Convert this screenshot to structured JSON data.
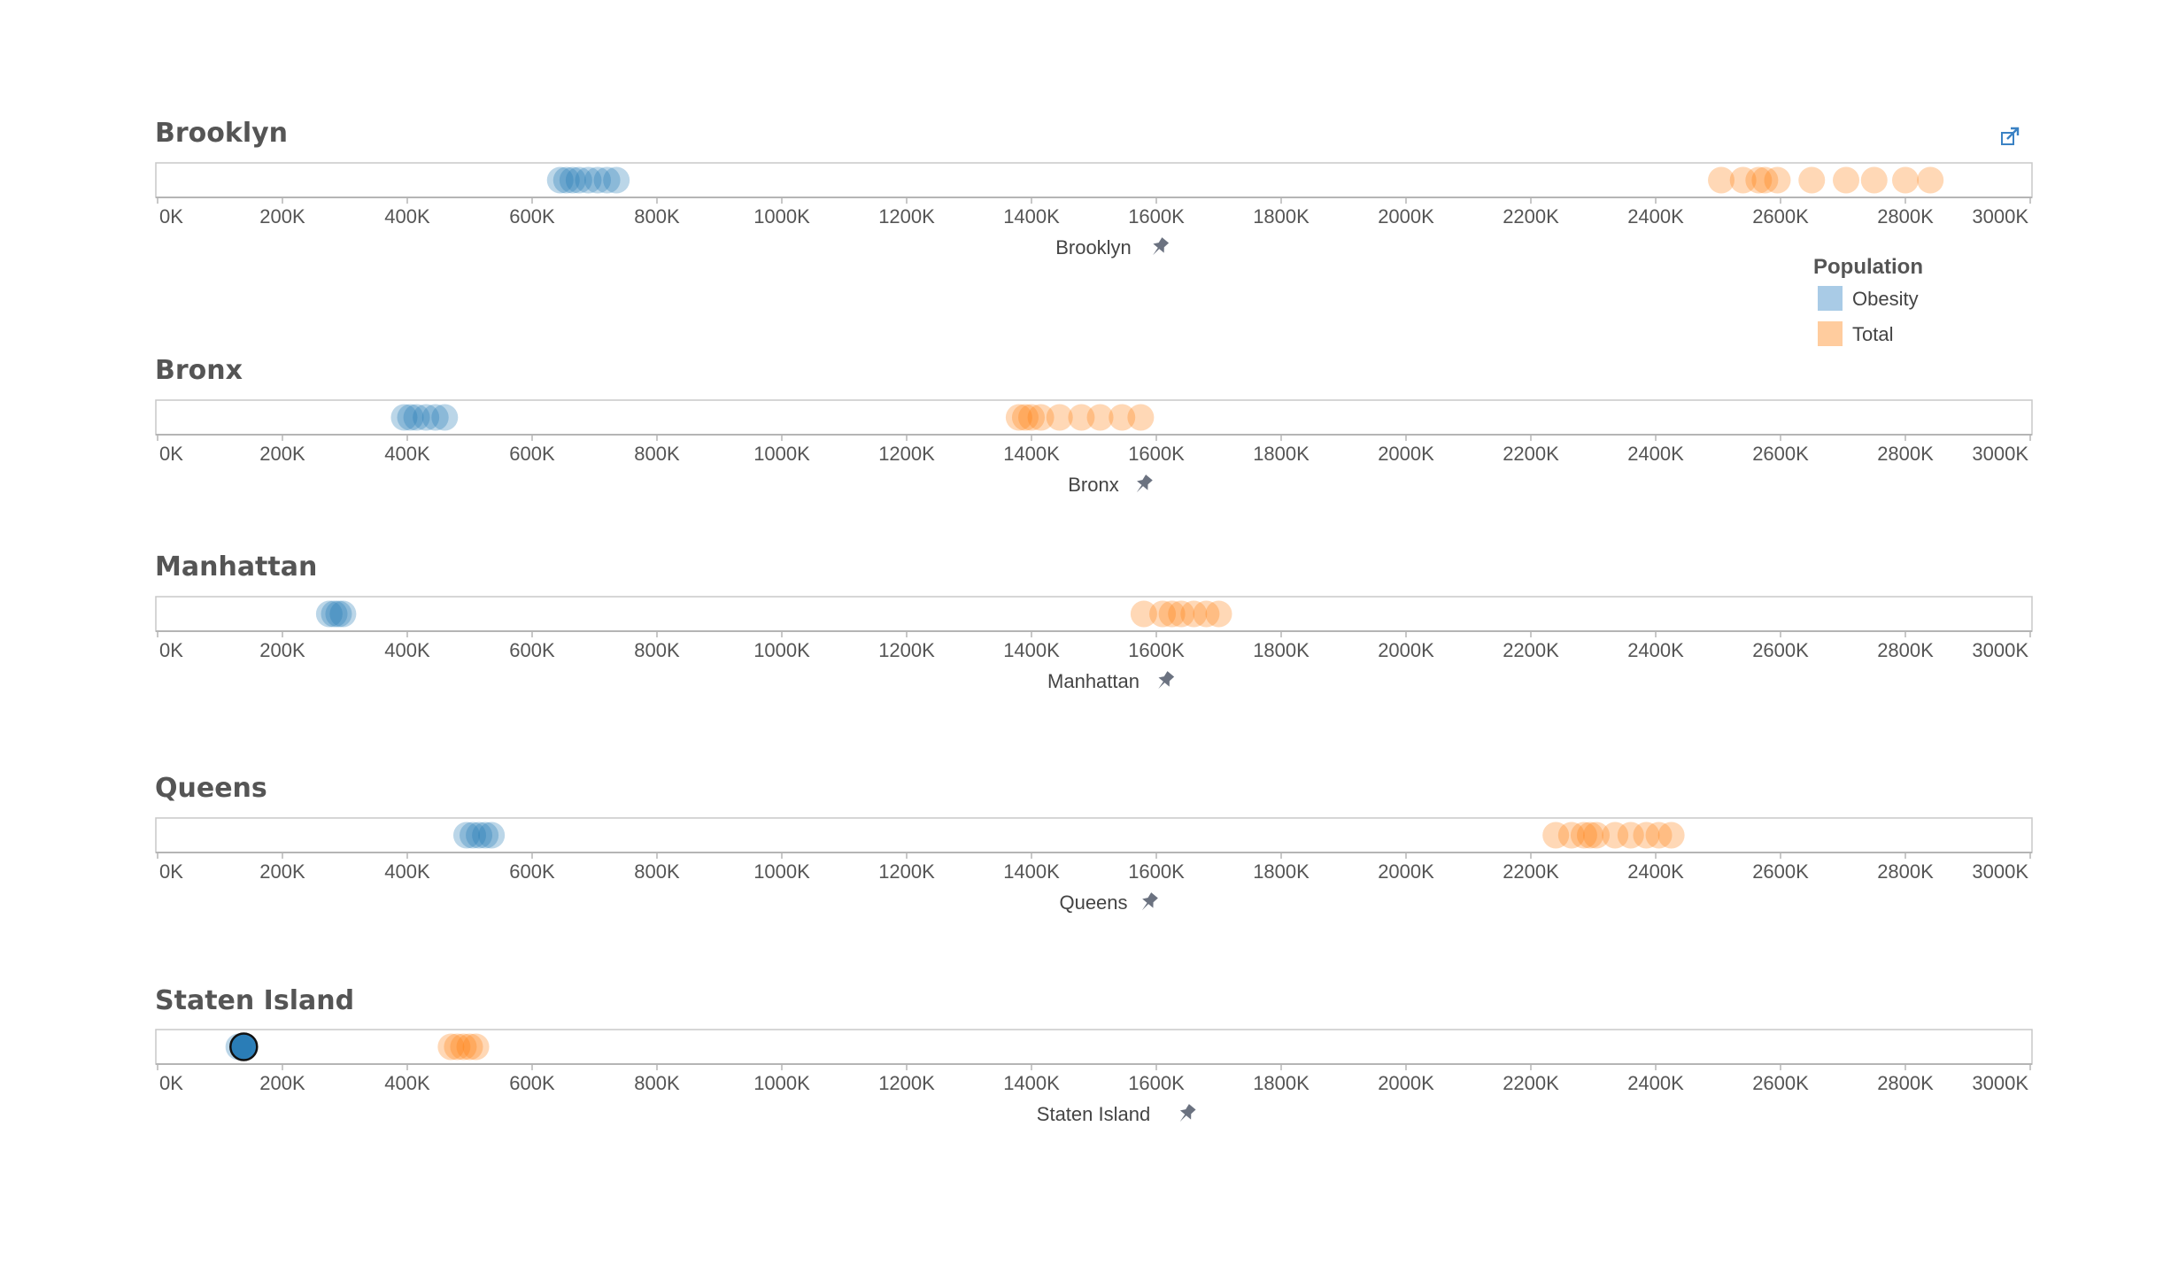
{
  "colors": {
    "obesity": "#1f77b4",
    "total": "#ff7f0e",
    "axis": "#c8c8c8",
    "text": "#555555",
    "pin": "#6b7280",
    "icon": "#3b82c4"
  },
  "icons": {
    "external": "external-link-icon",
    "pin": "pin-icon"
  },
  "legend": {
    "title": "Population",
    "items": [
      {
        "label": "Obesity",
        "color": "#a9cbe6"
      },
      {
        "label": "Total",
        "color": "#ffcc9e"
      }
    ]
  },
  "chart_data": {
    "type": "scatter",
    "xlim": [
      0,
      3000000
    ],
    "tick_values": [
      0,
      200000,
      400000,
      600000,
      800000,
      1000000,
      1200000,
      1400000,
      1600000,
      1800000,
      2000000,
      2200000,
      2400000,
      2600000,
      2800000,
      3000000
    ],
    "tick_labels": [
      "0K",
      "200K",
      "400K",
      "600K",
      "800K",
      "1000K",
      "1200K",
      "1400K",
      "1600K",
      "1800K",
      "2000K",
      "2200K",
      "2400K",
      "2600K",
      "2800K",
      "3000K"
    ],
    "panels": [
      {
        "title": "Brooklyn",
        "axis_title": "Brooklyn",
        "series": [
          {
            "name": "Obesity",
            "values": [
              645000,
              655000,
              665000,
              675000,
              690000,
              705000,
              720000,
              735000
            ]
          },
          {
            "name": "Total",
            "values": [
              2505000,
              2540000,
              2565000,
              2575000,
              2595000,
              2650000,
              2705000,
              2750000,
              2800000,
              2840000
            ]
          }
        ]
      },
      {
        "title": "Bronx",
        "axis_title": "Bronx",
        "series": [
          {
            "name": "Obesity",
            "values": [
              395000,
              405000,
              415000,
              430000,
              445000,
              460000
            ]
          },
          {
            "name": "Total",
            "values": [
              1380000,
              1390000,
              1400000,
              1415000,
              1445000,
              1480000,
              1510000,
              1545000,
              1575000
            ]
          }
        ]
      },
      {
        "title": "Manhattan",
        "axis_title": "Manhattan",
        "series": [
          {
            "name": "Obesity",
            "values": [
              275000,
              283000,
              290000,
              297000
            ]
          },
          {
            "name": "Total",
            "values": [
              1580000,
              1610000,
              1625000,
              1640000,
              1660000,
              1680000,
              1700000
            ]
          }
        ]
      },
      {
        "title": "Queens",
        "axis_title": "Queens",
        "series": [
          {
            "name": "Obesity",
            "values": [
              495000,
              505000,
              515000,
              525000,
              535000
            ]
          },
          {
            "name": "Total",
            "values": [
              2240000,
              2265000,
              2285000,
              2295000,
              2305000,
              2335000,
              2360000,
              2385000,
              2405000,
              2425000
            ]
          }
        ]
      },
      {
        "title": "Staten Island",
        "axis_title": "Staten Island",
        "series": [
          {
            "name": "Obesity",
            "values": [
              130000,
              138000
            ]
          },
          {
            "name": "Total",
            "values": [
              470000,
              480000,
              490000,
              500000,
              510000
            ]
          }
        ]
      }
    ]
  }
}
